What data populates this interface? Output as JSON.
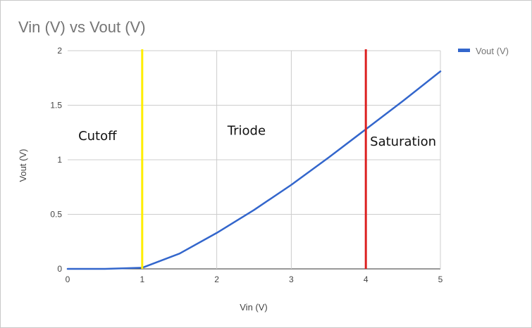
{
  "chart_data": {
    "type": "line",
    "title": "Vin (V) vs Vout (V)",
    "xlabel": "Vin (V)",
    "ylabel": "Vout (V)",
    "xlim": [
      0,
      5
    ],
    "ylim": [
      0,
      2
    ],
    "x_ticks": [
      0,
      1,
      2,
      3,
      4,
      5
    ],
    "y_ticks": [
      0,
      0.5,
      1,
      1.5,
      2
    ],
    "x_tick_labels": [
      "0",
      "1",
      "2",
      "3",
      "4",
      "5"
    ],
    "y_tick_labels": [
      "0",
      "0.5",
      "1",
      "1.5",
      "2"
    ],
    "grid": true,
    "legend_position": "top-right",
    "series": [
      {
        "name": "Vout (V)",
        "color": "#3366cc",
        "x": [
          0,
          0.5,
          1,
          1.5,
          2,
          2.5,
          3,
          3.5,
          4,
          4.5,
          5
        ],
        "y": [
          0,
          0,
          0.01,
          0.14,
          0.33,
          0.54,
          0.77,
          1.02,
          1.28,
          1.54,
          1.81
        ]
      }
    ],
    "vertical_markers": [
      {
        "x": 1,
        "color": "#ffee00"
      },
      {
        "x": 4,
        "color": "#dd2222"
      }
    ],
    "annotations": [
      {
        "text": "Cutoff",
        "x": 0.4,
        "y": 1.18
      },
      {
        "text": "Triode",
        "x": 2.4,
        "y": 1.23
      },
      {
        "text": "Saturation",
        "x": 4.5,
        "y": 1.13
      }
    ]
  }
}
